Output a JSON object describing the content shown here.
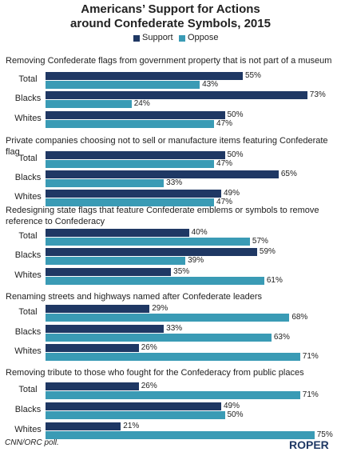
{
  "title": "Americans’ Support for Actions\naround Confederate Symbols, 2015",
  "source": "CNN/ORC poll.",
  "logo": "ROPER",
  "chart_data": [
    {
      "type": "hbar",
      "title": "Removing Confederate flags from government property that is not part of a museum",
      "categories": [
        "Total",
        "Blacks",
        "Whites"
      ],
      "series": [
        {
          "name": "Support",
          "color": "#1f3864",
          "values": [
            55,
            73,
            50
          ],
          "value_labels": [
            "55%",
            "73%",
            "50%"
          ]
        },
        {
          "name": "Oppose",
          "color": "#3a9bb5",
          "values": [
            43,
            24,
            47
          ],
          "value_labels": [
            "43%",
            "24%",
            "47%"
          ]
        }
      ]
    },
    {
      "type": "hbar",
      "title": "Private companies choosing not to sell or manufacture items featuring Confederate flag",
      "categories": [
        "Total",
        "Blacks",
        "Whites"
      ],
      "series": [
        {
          "name": "Support",
          "color": "#1f3864",
          "values": [
            50,
            65,
            49
          ],
          "value_labels": [
            "50%",
            "65%",
            "49%"
          ]
        },
        {
          "name": "Oppose",
          "color": "#3a9bb5",
          "values": [
            47,
            33,
            47
          ],
          "value_labels": [
            "47%",
            "33%",
            "47%"
          ]
        }
      ]
    },
    {
      "type": "hbar",
      "title": "Redesigning state flags that feature Confederate emblems or symbols to remove reference to Confederacy",
      "categories": [
        "Total",
        "Blacks",
        "Whites"
      ],
      "series": [
        {
          "name": "Support",
          "color": "#1f3864",
          "values": [
            40,
            59,
            35
          ],
          "value_labels": [
            "40%",
            "59%",
            "35%"
          ]
        },
        {
          "name": "Oppose",
          "color": "#3a9bb5",
          "values": [
            57,
            39,
            61
          ],
          "value_labels": [
            "57%",
            "39%",
            "61%"
          ]
        }
      ]
    },
    {
      "type": "hbar",
      "title": "Renaming streets and highways named after Confederate leaders",
      "categories": [
        "Total",
        "Blacks",
        "Whites"
      ],
      "series": [
        {
          "name": "Support",
          "color": "#1f3864",
          "values": [
            29,
            33,
            26
          ],
          "value_labels": [
            "29%",
            "33%",
            "26%"
          ]
        },
        {
          "name": "Oppose",
          "color": "#3a9bb5",
          "values": [
            68,
            63,
            71
          ],
          "value_labels": [
            "68%",
            "63%",
            "71%"
          ]
        }
      ]
    },
    {
      "type": "hbar",
      "title": "Removing tribute to those who fought for the Confederacy from public places",
      "categories": [
        "Total",
        "Blacks",
        "Whites"
      ],
      "series": [
        {
          "name": "Support",
          "color": "#1f3864",
          "values": [
            26,
            49,
            21
          ],
          "value_labels": [
            "26%",
            "49%",
            "21%"
          ]
        },
        {
          "name": "Oppose",
          "color": "#3a9bb5",
          "values": [
            71,
            50,
            75
          ],
          "value_labels": [
            "71%",
            "50%",
            "75%"
          ]
        }
      ]
    }
  ]
}
